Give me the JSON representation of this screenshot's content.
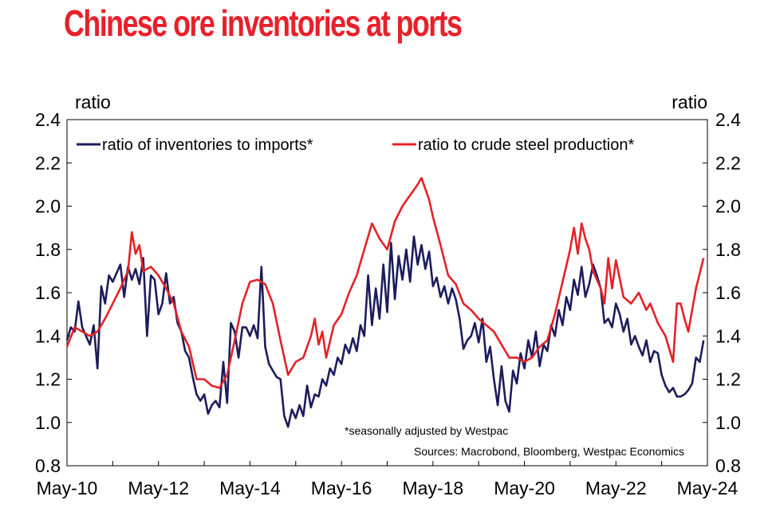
{
  "chart_data": {
    "type": "line",
    "title": "Chinese ore inventories at ports",
    "ylabel_left": "ratio",
    "ylabel_right": "ratio",
    "ylim": [
      0.8,
      2.4
    ],
    "yticks": [
      "0.8",
      "1.0",
      "1.2",
      "1.4",
      "1.6",
      "1.8",
      "2.0",
      "2.2",
      "2.4"
    ],
    "xlim": [
      "2010-05",
      "2024-05"
    ],
    "xticks": [
      "May-10",
      "May-12",
      "May-14",
      "May-16",
      "May-18",
      "May-20",
      "May-22",
      "May-24"
    ],
    "grid": false,
    "legend_position": "top",
    "series": [
      {
        "name": "ratio of inventories to imports*",
        "color": "#1c1c5c",
        "points": [
          [
            "2010-05",
            1.38
          ],
          [
            "2010-06",
            1.44
          ],
          [
            "2010-07",
            1.42
          ],
          [
            "2010-08",
            1.56
          ],
          [
            "2010-09",
            1.44
          ],
          [
            "2010-10",
            1.4
          ],
          [
            "2010-11",
            1.36
          ],
          [
            "2010-12",
            1.45
          ],
          [
            "2011-01",
            1.25
          ],
          [
            "2011-02",
            1.63
          ],
          [
            "2011-03",
            1.55
          ],
          [
            "2011-04",
            1.68
          ],
          [
            "2011-05",
            1.65
          ],
          [
            "2011-06",
            1.69
          ],
          [
            "2011-07",
            1.73
          ],
          [
            "2011-08",
            1.58
          ],
          [
            "2011-09",
            1.72
          ],
          [
            "2011-10",
            1.66
          ],
          [
            "2011-11",
            1.71
          ],
          [
            "2011-12",
            1.64
          ],
          [
            "2012-01",
            1.76
          ],
          [
            "2012-02",
            1.4
          ],
          [
            "2012-03",
            1.68
          ],
          [
            "2012-04",
            1.66
          ],
          [
            "2012-05",
            1.5
          ],
          [
            "2012-06",
            1.55
          ],
          [
            "2012-07",
            1.69
          ],
          [
            "2012-08",
            1.55
          ],
          [
            "2012-09",
            1.58
          ],
          [
            "2012-10",
            1.46
          ],
          [
            "2012-11",
            1.42
          ],
          [
            "2012-12",
            1.33
          ],
          [
            "2013-01",
            1.3
          ],
          [
            "2013-02",
            1.21
          ],
          [
            "2013-03",
            1.13
          ],
          [
            "2013-04",
            1.1
          ],
          [
            "2013-05",
            1.13
          ],
          [
            "2013-06",
            1.04
          ],
          [
            "2013-07",
            1.08
          ],
          [
            "2013-08",
            1.1
          ],
          [
            "2013-09",
            1.07
          ],
          [
            "2013-10",
            1.28
          ],
          [
            "2013-11",
            1.09
          ],
          [
            "2013-12",
            1.46
          ],
          [
            "2014-01",
            1.42
          ],
          [
            "2014-02",
            1.3
          ],
          [
            "2014-03",
            1.44
          ],
          [
            "2014-04",
            1.44
          ],
          [
            "2014-05",
            1.4
          ],
          [
            "2014-06",
            1.45
          ],
          [
            "2014-07",
            1.39
          ],
          [
            "2014-08",
            1.72
          ],
          [
            "2014-09",
            1.35
          ],
          [
            "2014-10",
            1.27
          ],
          [
            "2014-11",
            1.24
          ],
          [
            "2014-12",
            1.21
          ],
          [
            "2015-01",
            1.2
          ],
          [
            "2015-02",
            1.03
          ],
          [
            "2015-03",
            0.98
          ],
          [
            "2015-04",
            1.06
          ],
          [
            "2015-05",
            1.02
          ],
          [
            "2015-06",
            1.08
          ],
          [
            "2015-07",
            1.03
          ],
          [
            "2015-08",
            1.17
          ],
          [
            "2015-09",
            1.07
          ],
          [
            "2015-10",
            1.13
          ],
          [
            "2015-11",
            1.12
          ],
          [
            "2015-12",
            1.2
          ],
          [
            "2016-01",
            1.17
          ],
          [
            "2016-02",
            1.25
          ],
          [
            "2016-03",
            1.22
          ],
          [
            "2016-04",
            1.3
          ],
          [
            "2016-05",
            1.27
          ],
          [
            "2016-06",
            1.36
          ],
          [
            "2016-07",
            1.32
          ],
          [
            "2016-08",
            1.39
          ],
          [
            "2016-09",
            1.33
          ],
          [
            "2016-10",
            1.45
          ],
          [
            "2016-11",
            1.4
          ],
          [
            "2016-12",
            1.68
          ],
          [
            "2017-01",
            1.45
          ],
          [
            "2017-02",
            1.62
          ],
          [
            "2017-03",
            1.48
          ],
          [
            "2017-04",
            1.73
          ],
          [
            "2017-05",
            1.51
          ],
          [
            "2017-06",
            1.83
          ],
          [
            "2017-07",
            1.57
          ],
          [
            "2017-08",
            1.77
          ],
          [
            "2017-09",
            1.66
          ],
          [
            "2017-10",
            1.8
          ],
          [
            "2017-11",
            1.65
          ],
          [
            "2017-12",
            1.86
          ],
          [
            "2018-01",
            1.73
          ],
          [
            "2018-02",
            1.82
          ],
          [
            "2018-03",
            1.71
          ],
          [
            "2018-04",
            1.79
          ],
          [
            "2018-05",
            1.63
          ],
          [
            "2018-06",
            1.67
          ],
          [
            "2018-07",
            1.58
          ],
          [
            "2018-08",
            1.63
          ],
          [
            "2018-09",
            1.55
          ],
          [
            "2018-10",
            1.62
          ],
          [
            "2018-11",
            1.57
          ],
          [
            "2018-12",
            1.48
          ],
          [
            "2019-01",
            1.34
          ],
          [
            "2019-02",
            1.38
          ],
          [
            "2019-03",
            1.4
          ],
          [
            "2019-04",
            1.46
          ],
          [
            "2019-05",
            1.37
          ],
          [
            "2019-06",
            1.48
          ],
          [
            "2019-07",
            1.28
          ],
          [
            "2019-08",
            1.35
          ],
          [
            "2019-09",
            1.2
          ],
          [
            "2019-10",
            1.08
          ],
          [
            "2019-11",
            1.26
          ],
          [
            "2019-12",
            1.1
          ],
          [
            "2020-01",
            1.05
          ],
          [
            "2020-02",
            1.24
          ],
          [
            "2020-03",
            1.18
          ],
          [
            "2020-04",
            1.32
          ],
          [
            "2020-05",
            1.25
          ],
          [
            "2020-06",
            1.38
          ],
          [
            "2020-07",
            1.3
          ],
          [
            "2020-08",
            1.42
          ],
          [
            "2020-09",
            1.26
          ],
          [
            "2020-10",
            1.36
          ],
          [
            "2020-11",
            1.33
          ],
          [
            "2020-12",
            1.45
          ],
          [
            "2021-01",
            1.4
          ],
          [
            "2021-02",
            1.52
          ],
          [
            "2021-03",
            1.45
          ],
          [
            "2021-04",
            1.58
          ],
          [
            "2021-05",
            1.52
          ],
          [
            "2021-06",
            1.66
          ],
          [
            "2021-07",
            1.59
          ],
          [
            "2021-08",
            1.72
          ],
          [
            "2021-09",
            1.58
          ],
          [
            "2021-10",
            1.64
          ],
          [
            "2021-11",
            1.73
          ],
          [
            "2021-12",
            1.68
          ],
          [
            "2022-01",
            1.62
          ],
          [
            "2022-02",
            1.46
          ],
          [
            "2022-03",
            1.48
          ],
          [
            "2022-04",
            1.44
          ],
          [
            "2022-05",
            1.55
          ],
          [
            "2022-06",
            1.5
          ],
          [
            "2022-07",
            1.42
          ],
          [
            "2022-08",
            1.48
          ],
          [
            "2022-09",
            1.36
          ],
          [
            "2022-10",
            1.4
          ],
          [
            "2022-11",
            1.35
          ],
          [
            "2022-12",
            1.31
          ],
          [
            "2023-01",
            1.38
          ],
          [
            "2023-02",
            1.28
          ],
          [
            "2023-03",
            1.33
          ],
          [
            "2023-04",
            1.32
          ],
          [
            "2023-05",
            1.22
          ],
          [
            "2023-06",
            1.17
          ],
          [
            "2023-07",
            1.14
          ],
          [
            "2023-08",
            1.16
          ],
          [
            "2023-09",
            1.12
          ],
          [
            "2023-10",
            1.12
          ],
          [
            "2023-11",
            1.13
          ],
          [
            "2023-12",
            1.15
          ],
          [
            "2024-01",
            1.18
          ],
          [
            "2024-02",
            1.3
          ],
          [
            "2024-03",
            1.28
          ],
          [
            "2024-04",
            1.38
          ]
        ]
      },
      {
        "name": "ratio to crude steel production*",
        "color": "#e32228",
        "points": [
          [
            "2010-05",
            1.35
          ],
          [
            "2010-07",
            1.44
          ],
          [
            "2010-09",
            1.42
          ],
          [
            "2010-11",
            1.4
          ],
          [
            "2011-01",
            1.42
          ],
          [
            "2011-03",
            1.48
          ],
          [
            "2011-05",
            1.55
          ],
          [
            "2011-07",
            1.62
          ],
          [
            "2011-09",
            1.7
          ],
          [
            "2011-10",
            1.88
          ],
          [
            "2011-11",
            1.78
          ],
          [
            "2011-12",
            1.82
          ],
          [
            "2012-01",
            1.7
          ],
          [
            "2012-03",
            1.72
          ],
          [
            "2012-05",
            1.68
          ],
          [
            "2012-07",
            1.62
          ],
          [
            "2012-09",
            1.55
          ],
          [
            "2012-11",
            1.42
          ],
          [
            "2013-01",
            1.35
          ],
          [
            "2013-03",
            1.2
          ],
          [
            "2013-05",
            1.2
          ],
          [
            "2013-07",
            1.17
          ],
          [
            "2013-09",
            1.16
          ],
          [
            "2013-11",
            1.22
          ],
          [
            "2014-01",
            1.38
          ],
          [
            "2014-03",
            1.55
          ],
          [
            "2014-05",
            1.65
          ],
          [
            "2014-07",
            1.66
          ],
          [
            "2014-09",
            1.64
          ],
          [
            "2014-11",
            1.55
          ],
          [
            "2015-01",
            1.38
          ],
          [
            "2015-03",
            1.22
          ],
          [
            "2015-05",
            1.28
          ],
          [
            "2015-07",
            1.3
          ],
          [
            "2015-09",
            1.4
          ],
          [
            "2015-10",
            1.48
          ],
          [
            "2015-11",
            1.36
          ],
          [
            "2015-12",
            1.42
          ],
          [
            "2016-01",
            1.3
          ],
          [
            "2016-03",
            1.45
          ],
          [
            "2016-05",
            1.5
          ],
          [
            "2016-07",
            1.6
          ],
          [
            "2016-09",
            1.68
          ],
          [
            "2016-11",
            1.8
          ],
          [
            "2017-01",
            1.92
          ],
          [
            "2017-03",
            1.85
          ],
          [
            "2017-05",
            1.8
          ],
          [
            "2017-07",
            1.93
          ],
          [
            "2017-09",
            2.0
          ],
          [
            "2017-11",
            2.05
          ],
          [
            "2018-01",
            2.1
          ],
          [
            "2018-02",
            2.13
          ],
          [
            "2018-04",
            2.03
          ],
          [
            "2018-05",
            1.95
          ],
          [
            "2018-07",
            1.82
          ],
          [
            "2018-09",
            1.68
          ],
          [
            "2018-11",
            1.64
          ],
          [
            "2019-01",
            1.55
          ],
          [
            "2019-03",
            1.52
          ],
          [
            "2019-05",
            1.48
          ],
          [
            "2019-07",
            1.45
          ],
          [
            "2019-09",
            1.42
          ],
          [
            "2019-11",
            1.36
          ],
          [
            "2020-01",
            1.3
          ],
          [
            "2020-03",
            1.3
          ],
          [
            "2020-05",
            1.28
          ],
          [
            "2020-07",
            1.3
          ],
          [
            "2020-09",
            1.35
          ],
          [
            "2020-11",
            1.38
          ],
          [
            "2021-01",
            1.5
          ],
          [
            "2021-03",
            1.65
          ],
          [
            "2021-05",
            1.8
          ],
          [
            "2021-06",
            1.9
          ],
          [
            "2021-07",
            1.78
          ],
          [
            "2021-08",
            1.92
          ],
          [
            "2021-09",
            1.85
          ],
          [
            "2021-10",
            1.8
          ],
          [
            "2021-11",
            1.7
          ],
          [
            "2022-01",
            1.62
          ],
          [
            "2022-02",
            1.55
          ],
          [
            "2022-03",
            1.76
          ],
          [
            "2022-04",
            1.62
          ],
          [
            "2022-05",
            1.75
          ],
          [
            "2022-07",
            1.58
          ],
          [
            "2022-09",
            1.55
          ],
          [
            "2022-11",
            1.6
          ],
          [
            "2023-01",
            1.52
          ],
          [
            "2023-02",
            1.55
          ],
          [
            "2023-04",
            1.46
          ],
          [
            "2023-06",
            1.4
          ],
          [
            "2023-08",
            1.28
          ],
          [
            "2023-09",
            1.55
          ],
          [
            "2023-10",
            1.55
          ],
          [
            "2023-11",
            1.48
          ],
          [
            "2023-12",
            1.42
          ],
          [
            "2024-02",
            1.62
          ],
          [
            "2024-04",
            1.76
          ]
        ]
      }
    ],
    "annotations": [
      "*seasonally adjusted by Westpac",
      "Sources: Macrobond, Bloomberg, Westpac Economics"
    ]
  }
}
